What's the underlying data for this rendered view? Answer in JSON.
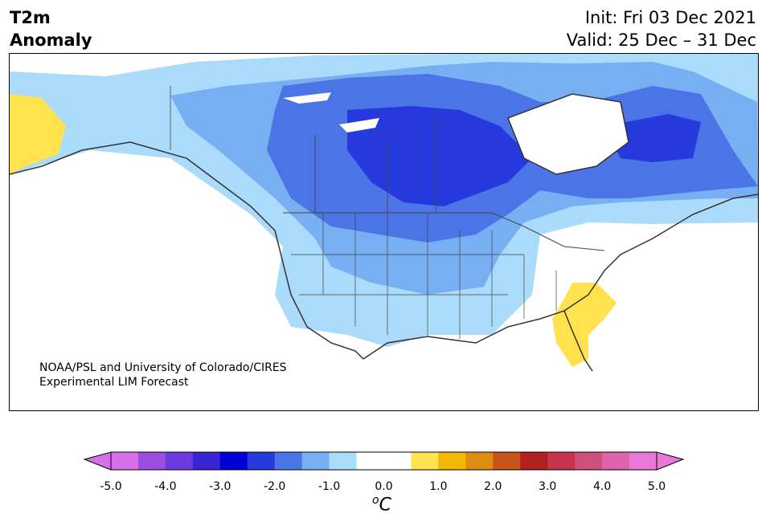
{
  "header": {
    "variable": "T2m",
    "field": "Anomaly",
    "init": "Init: Fri 03 Dec 2021",
    "valid": "Valid: 25 Dec – 31 Dec"
  },
  "credit": {
    "line1": "NOAA/PSL and University of Colorado/CIRES",
    "line2": "Experimental LIM Forecast"
  },
  "colorbar": {
    "ticks": [
      "-5.0",
      "-4.0",
      "-3.0",
      "-2.0",
      "-1.0",
      "0.0",
      "1.0",
      "2.0",
      "3.0",
      "4.0",
      "5.0"
    ],
    "unit_sup": "o",
    "unit": "C",
    "colors": [
      "#d66fe8",
      "#9a4fe0",
      "#6b3be0",
      "#3a25d2",
      "#0000d6",
      "#2639dc",
      "#4b74e6",
      "#78aef2",
      "#abdbfa",
      "#ffffff",
      "#ffffff",
      "#ffe24d",
      "#f3b800",
      "#df8d12",
      "#c8541a",
      "#b21f1f",
      "#c5334d",
      "#cf4f7c",
      "#dc63ac",
      "#e878d8"
    ]
  }
}
